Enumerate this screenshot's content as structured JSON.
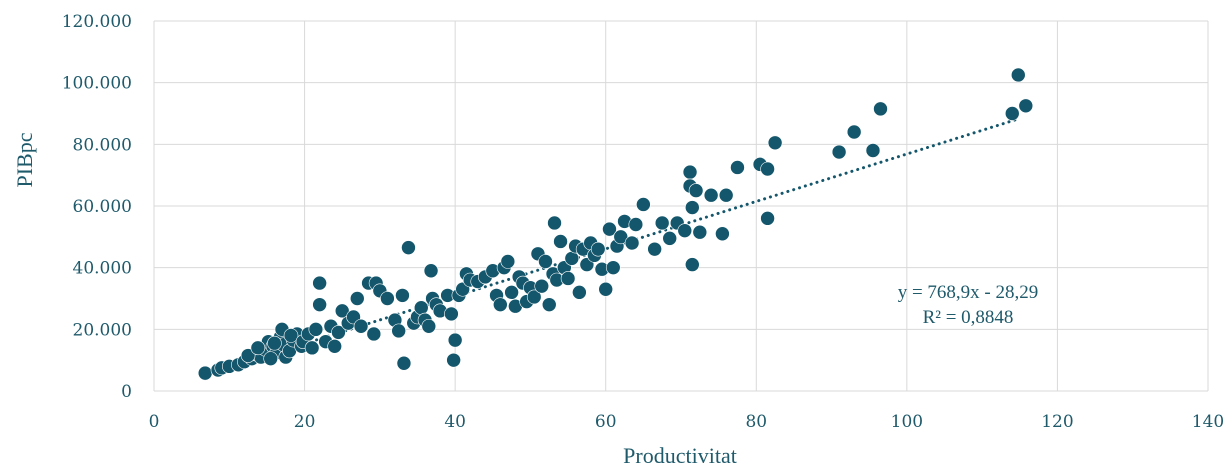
{
  "chart_data": {
    "type": "scatter",
    "xlabel": "Productivitat",
    "ylabel": "PIBpc",
    "xlim": [
      0,
      140
    ],
    "ylim": [
      0,
      120000
    ],
    "x_ticks": [
      "0",
      "20",
      "40",
      "60",
      "80",
      "100",
      "120",
      "140"
    ],
    "y_ticks": [
      "0",
      "20.000",
      "40.000",
      "60.000",
      "80.000",
      "100.000",
      "120.000"
    ],
    "grid": true,
    "legend": "none",
    "trendline": {
      "type": "linear",
      "style": "dotted",
      "slope": 768.9,
      "intercept": -28.29,
      "x_range": [
        10,
        115
      ],
      "equation": "y = 768,9x - 28,29",
      "r_squared": "R² = 0,8848"
    },
    "colors": {
      "points": "#14566b",
      "text": "#1f5a6b",
      "grid": "#d9d9d9"
    },
    "points": [
      [
        6.8,
        5800
      ],
      [
        8.5,
        6800
      ],
      [
        9.0,
        7500
      ],
      [
        10.0,
        8000
      ],
      [
        11.2,
        8500
      ],
      [
        12.0,
        9500
      ],
      [
        13.0,
        10500
      ],
      [
        13.5,
        12000
      ],
      [
        14.2,
        11000
      ],
      [
        14.8,
        13500
      ],
      [
        15.2,
        16000
      ],
      [
        15.8,
        14500
      ],
      [
        16.3,
        12500
      ],
      [
        16.8,
        17500
      ],
      [
        17.2,
        15000
      ],
      [
        17.5,
        11000
      ],
      [
        18.0,
        13000
      ],
      [
        18.5,
        16500
      ],
      [
        19.0,
        18500
      ],
      [
        19.6,
        14500
      ],
      [
        12.5,
        11500
      ],
      [
        13.8,
        14000
      ],
      [
        15.5,
        10500
      ],
      [
        16.0,
        15500
      ],
      [
        17.0,
        20000
      ],
      [
        18.2,
        18000
      ],
      [
        19.8,
        16000
      ],
      [
        20.5,
        18500
      ],
      [
        21.0,
        14000
      ],
      [
        21.5,
        20000
      ],
      [
        22.0,
        28000
      ],
      [
        22.0,
        35000
      ],
      [
        22.8,
        16000
      ],
      [
        23.5,
        21000
      ],
      [
        24.0,
        14500
      ],
      [
        24.5,
        19000
      ],
      [
        25.0,
        26000
      ],
      [
        25.8,
        22000
      ],
      [
        26.5,
        24000
      ],
      [
        27.0,
        30000
      ],
      [
        27.5,
        21000
      ],
      [
        28.5,
        35000
      ],
      [
        29.2,
        18500
      ],
      [
        29.5,
        35000
      ],
      [
        30.0,
        32500
      ],
      [
        31.0,
        30000
      ],
      [
        32.0,
        23000
      ],
      [
        32.5,
        19500
      ],
      [
        33.0,
        31000
      ],
      [
        33.2,
        9000
      ],
      [
        33.8,
        46500
      ],
      [
        34.5,
        22000
      ],
      [
        35.0,
        24000
      ],
      [
        35.5,
        27000
      ],
      [
        36.0,
        23000
      ],
      [
        36.5,
        21000
      ],
      [
        36.8,
        39000
      ],
      [
        37.0,
        30000
      ],
      [
        37.5,
        28000
      ],
      [
        38.0,
        26000
      ],
      [
        39.0,
        31000
      ],
      [
        39.5,
        25000
      ],
      [
        39.8,
        10000
      ],
      [
        40.0,
        16500
      ],
      [
        40.5,
        31000
      ],
      [
        41.0,
        33000
      ],
      [
        41.5,
        38000
      ],
      [
        42.0,
        36000
      ],
      [
        43.0,
        35500
      ],
      [
        44.0,
        37000
      ],
      [
        45.0,
        39000
      ],
      [
        45.5,
        31000
      ],
      [
        46.0,
        28000
      ],
      [
        46.5,
        40000
      ],
      [
        47.0,
        42000
      ],
      [
        47.5,
        32000
      ],
      [
        48.0,
        27500
      ],
      [
        48.5,
        37000
      ],
      [
        49.0,
        35000
      ],
      [
        49.5,
        29000
      ],
      [
        50.0,
        33500
      ],
      [
        50.5,
        30500
      ],
      [
        51.0,
        44500
      ],
      [
        51.5,
        34000
      ],
      [
        52.0,
        42000
      ],
      [
        52.5,
        28000
      ],
      [
        53.0,
        38000
      ],
      [
        53.2,
        54500
      ],
      [
        53.5,
        36000
      ],
      [
        54.0,
        48500
      ],
      [
        54.5,
        40000
      ],
      [
        55.0,
        36500
      ],
      [
        55.5,
        43000
      ],
      [
        56.0,
        47000
      ],
      [
        56.5,
        32000
      ],
      [
        57.0,
        46000
      ],
      [
        57.5,
        41000
      ],
      [
        58.0,
        48000
      ],
      [
        58.5,
        44000
      ],
      [
        59.0,
        46000
      ],
      [
        59.5,
        39500
      ],
      [
        60.0,
        33000
      ],
      [
        60.5,
        52500
      ],
      [
        61.0,
        40000
      ],
      [
        61.5,
        47000
      ],
      [
        62.0,
        50000
      ],
      [
        62.5,
        55000
      ],
      [
        63.5,
        48000
      ],
      [
        64.0,
        54000
      ],
      [
        65.0,
        60500
      ],
      [
        66.5,
        46000
      ],
      [
        67.5,
        54500
      ],
      [
        68.5,
        49500
      ],
      [
        69.5,
        54500
      ],
      [
        70.5,
        52000
      ],
      [
        71.2,
        71000
      ],
      [
        71.2,
        66500
      ],
      [
        71.5,
        59500
      ],
      [
        71.5,
        41000
      ],
      [
        72.0,
        65000
      ],
      [
        72.5,
        51500
      ],
      [
        74.0,
        63500
      ],
      [
        75.5,
        51000
      ],
      [
        76.0,
        63500
      ],
      [
        77.5,
        72500
      ],
      [
        80.5,
        73500
      ],
      [
        81.5,
        72000
      ],
      [
        81.5,
        56000
      ],
      [
        82.5,
        80500
      ],
      [
        91.0,
        77500
      ],
      [
        93.0,
        84000
      ],
      [
        95.5,
        78000
      ],
      [
        96.5,
        91500
      ],
      [
        114.0,
        90000
      ],
      [
        114.8,
        102500
      ],
      [
        115.8,
        92500
      ]
    ]
  }
}
